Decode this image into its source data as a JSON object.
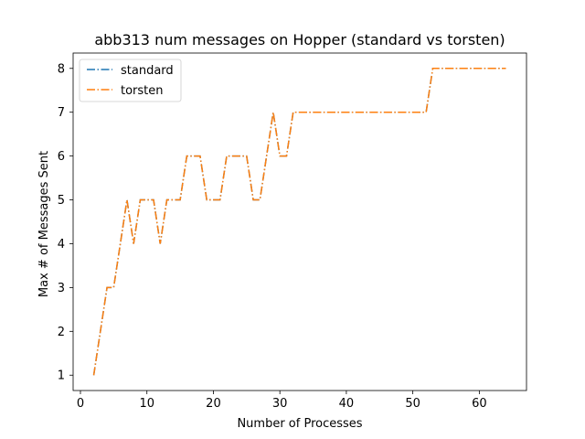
{
  "chart_data": {
    "type": "line",
    "title": "abb313 num messages on Hopper (standard vs torsten)",
    "xlabel": "Number of Processes",
    "ylabel": "Max # of Messages Sent",
    "xlim": [
      -1.1,
      67.1
    ],
    "ylim": [
      0.65,
      8.35
    ],
    "xticks": [
      0,
      10,
      20,
      30,
      40,
      50,
      60
    ],
    "yticks": [
      1,
      2,
      3,
      4,
      5,
      6,
      7,
      8
    ],
    "grid": false,
    "legend_position": "upper left",
    "x": [
      2,
      3,
      4,
      5,
      6,
      7,
      8,
      9,
      10,
      11,
      12,
      13,
      14,
      15,
      16,
      17,
      18,
      19,
      20,
      21,
      22,
      23,
      24,
      25,
      26,
      27,
      28,
      29,
      30,
      31,
      32,
      33,
      34,
      35,
      36,
      37,
      38,
      39,
      40,
      41,
      42,
      43,
      44,
      45,
      46,
      47,
      48,
      49,
      50,
      51,
      52,
      53,
      54,
      55,
      56,
      57,
      58,
      59,
      60,
      61,
      62,
      63,
      64
    ],
    "series": [
      {
        "name": "standard",
        "color": "#1f77b4",
        "line_style": "dashdot",
        "values": [
          1,
          2,
          3,
          3,
          4,
          5,
          4,
          5,
          5,
          5,
          4,
          5,
          5,
          5,
          6,
          6,
          6,
          5,
          5,
          5,
          6,
          6,
          6,
          6,
          5,
          5,
          6,
          7,
          6,
          6,
          7,
          7,
          7,
          7,
          7,
          7,
          7,
          7,
          7,
          7,
          7,
          7,
          7,
          7,
          7,
          7,
          7,
          7,
          7,
          7,
          7,
          8,
          8,
          8,
          8,
          8,
          8,
          8,
          8,
          8,
          8,
          8,
          8
        ]
      },
      {
        "name": "torsten",
        "color": "#ff7f0e",
        "line_style": "dashdot",
        "values": [
          1,
          2,
          3,
          3,
          4,
          5,
          4,
          5,
          5,
          5,
          4,
          5,
          5,
          5,
          6,
          6,
          6,
          5,
          5,
          5,
          6,
          6,
          6,
          6,
          5,
          5,
          6,
          7,
          6,
          6,
          7,
          7,
          7,
          7,
          7,
          7,
          7,
          7,
          7,
          7,
          7,
          7,
          7,
          7,
          7,
          7,
          7,
          7,
          7,
          7,
          7,
          8,
          8,
          8,
          8,
          8,
          8,
          8,
          8,
          8,
          8,
          8,
          8
        ]
      }
    ]
  }
}
